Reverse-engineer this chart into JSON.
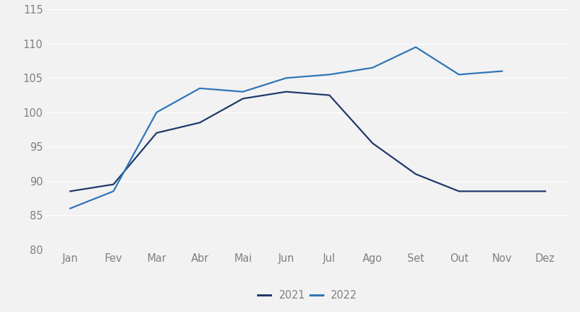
{
  "months": [
    "Jan",
    "Fev",
    "Mar",
    "Abr",
    "Mai",
    "Jun",
    "Jul",
    "Ago",
    "Set",
    "Out",
    "Nov",
    "Dez"
  ],
  "series_2021": [
    88.5,
    89.5,
    97.0,
    98.5,
    102.0,
    103.0,
    102.5,
    95.5,
    91.0,
    88.5,
    88.5,
    88.5
  ],
  "series_2022": [
    86.0,
    88.5,
    100.0,
    103.5,
    103.0,
    105.0,
    105.5,
    106.5,
    109.5,
    105.5,
    106.0,
    null
  ],
  "color_2021": "#1f3869",
  "color_2022": "#2e75b6",
  "ylim_min": 80,
  "ylim_max": 115,
  "yticks": [
    80,
    85,
    90,
    95,
    100,
    105,
    110,
    115
  ],
  "legend_labels": [
    "2021",
    "2022"
  ],
  "line_width": 1.6,
  "background_color": "#f2f2f2",
  "grid_color": "#ffffff",
  "tick_label_color": "#808080",
  "tick_fontsize": 10.5
}
